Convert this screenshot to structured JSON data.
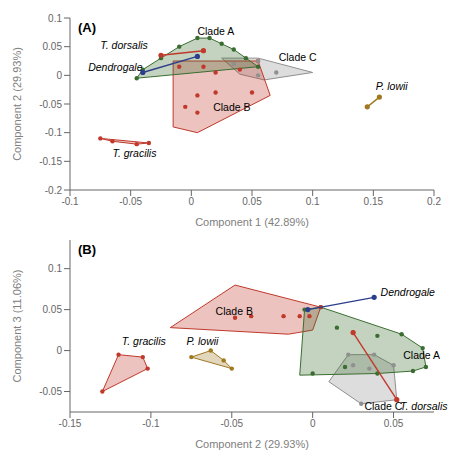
{
  "chart_data": [
    {
      "type": "scatter",
      "title": "(A)",
      "xlabel": "Component 1 (42.89%)",
      "ylabel": "Component 2 (29.93%)",
      "xlim": [
        -0.1,
        0.2
      ],
      "ylim": [
        -0.2,
        0.1
      ],
      "xticks": [
        -0.1,
        -0.05,
        0,
        0.05,
        0.1,
        0.15,
        0.2
      ],
      "yticks": [
        -0.2,
        -0.15,
        -0.1,
        -0.05,
        0,
        0.05,
        0.1
      ],
      "series": [
        {
          "type": "polygon",
          "color": "#909090",
          "x": [
            0.025,
            0.04,
            0.06,
            0.1,
            0.055
          ],
          "y": [
            0.03,
            0.002,
            -0.008,
            0.005,
            0.03
          ]
        },
        {
          "type": "polygon",
          "color": "#c0392b",
          "x": [
            -0.015,
            0.005,
            0.065,
            0.055,
            -0.015
          ],
          "y": [
            -0.09,
            -0.1,
            -0.035,
            0.025,
            0.025
          ]
        },
        {
          "type": "polygon",
          "color": "#c0392b",
          "x": [
            -0.075,
            -0.065,
            -0.045,
            -0.035
          ],
          "y": [
            -0.11,
            -0.115,
            -0.12,
            -0.118
          ]
        },
        {
          "type": "polygon",
          "color": "#3a6e30",
          "x": [
            -0.045,
            0.055,
            0.035,
            0.015,
            0.005,
            -0.01,
            -0.04
          ],
          "y": [
            -0.005,
            0.015,
            0.045,
            0.065,
            0.065,
            0.05,
            0.01
          ]
        },
        {
          "type": "line",
          "color": "#a07820",
          "marker": "circle",
          "x": [
            0.145,
            0.155
          ],
          "y": [
            -0.055,
            -0.038
          ]
        },
        {
          "type": "scatter",
          "color": "#3a6e30",
          "marker": "circle",
          "x": [
            -0.04,
            -0.025,
            -0.01,
            0.005,
            0.015,
            0.025,
            0.035,
            0.045,
            0.055,
            -0.045
          ],
          "y": [
            0.01,
            0.03,
            0.05,
            0.065,
            0.065,
            0.055,
            0.045,
            0.03,
            0.015,
            -0.005
          ]
        },
        {
          "type": "scatter",
          "color": "#c0392b",
          "marker": "circle",
          "x": [
            -0.01,
            0.01,
            0.02,
            0.04,
            0.055,
            0.05,
            0.02,
            0.005,
            0.005,
            -0.005
          ],
          "y": [
            0.015,
            0.015,
            0.005,
            0.01,
            0.025,
            -0.03,
            -0.03,
            -0.035,
            -0.065,
            -0.055
          ]
        },
        {
          "type": "scatter",
          "color": "#909090",
          "marker": "circle",
          "x": [
            0.035,
            0.055,
            0.07,
            0.055
          ],
          "y": [
            0.02,
            0.025,
            0.005,
            0.0
          ]
        },
        {
          "type": "scatter",
          "color": "#c0392b",
          "marker": "circle",
          "x": [
            -0.075,
            -0.065,
            -0.045,
            -0.035
          ],
          "y": [
            -0.11,
            -0.115,
            -0.12,
            -0.118
          ]
        },
        {
          "type": "line",
          "color": "#2c3e8a",
          "marker": "circle",
          "x": [
            -0.04,
            0.005
          ],
          "y": [
            0.005,
            0.033
          ]
        },
        {
          "type": "line",
          "color": "#c0392b",
          "marker": "circle",
          "x": [
            -0.025,
            0.01
          ],
          "y": [
            0.035,
            0.043
          ]
        }
      ],
      "annotations": [
        {
          "text": "Clade A",
          "x": 0.005,
          "y": 0.077,
          "italic": false
        },
        {
          "text": "Clade B",
          "x": 0.018,
          "y": -0.055,
          "italic": false
        },
        {
          "text": "Clade C",
          "x": 0.072,
          "y": 0.032,
          "italic": false
        },
        {
          "text": "T. dorsalis",
          "x": -0.075,
          "y": 0.053,
          "italic": true
        },
        {
          "text": "Dendrogale",
          "x": -0.085,
          "y": 0.015,
          "italic": true
        },
        {
          "text": "T. gracilis",
          "x": -0.065,
          "y": -0.135,
          "italic": true
        },
        {
          "text": "P. lowii",
          "x": 0.152,
          "y": -0.018,
          "italic": true
        }
      ]
    },
    {
      "type": "scatter",
      "title": "(B)",
      "xlabel": "Component 2 (29.93%)",
      "ylabel": "Component 3 (11.06%)",
      "xlim": [
        -0.15,
        0.075
      ],
      "ylim": [
        -0.075,
        0.135
      ],
      "xticks": [
        -0.15,
        -0.1,
        -0.05,
        0,
        0.05
      ],
      "yticks": [
        -0.05,
        0,
        0.05,
        0.1
      ],
      "series": [
        {
          "type": "polygon",
          "color": "#909090",
          "x": [
            0.01,
            0.03,
            0.052,
            0.05,
            0.038,
            0.022
          ],
          "y": [
            -0.038,
            -0.065,
            -0.06,
            -0.018,
            -0.005,
            -0.005
          ]
        },
        {
          "type": "polygon",
          "color": "#c0392b",
          "x": [
            -0.088,
            -0.015,
            0.0,
            0.005,
            -0.048
          ],
          "y": [
            0.028,
            0.02,
            0.025,
            0.053,
            0.08
          ]
        },
        {
          "type": "polygon",
          "color": "#c0392b",
          "x": [
            -0.13,
            -0.102,
            -0.105,
            -0.12
          ],
          "y": [
            -0.05,
            -0.022,
            -0.008,
            -0.005
          ]
        },
        {
          "type": "polygon",
          "color": "#a07820",
          "x": [
            -0.075,
            -0.05,
            -0.055,
            -0.063
          ],
          "y": [
            -0.008,
            -0.022,
            -0.012,
            0.0
          ]
        },
        {
          "type": "polygon",
          "color": "#3a6e30",
          "x": [
            -0.008,
            0.04,
            0.062,
            0.07,
            0.068,
            0.055,
            0.005,
            -0.005
          ],
          "y": [
            -0.03,
            -0.028,
            -0.025,
            -0.02,
            0.003,
            0.02,
            0.053,
            0.05
          ]
        },
        {
          "type": "scatter",
          "color": "#a07820",
          "marker": "circle",
          "x": [
            -0.075,
            -0.063,
            -0.055,
            -0.05
          ],
          "y": [
            -0.008,
            0.0,
            -0.012,
            -0.022
          ]
        },
        {
          "type": "scatter",
          "color": "#3a6e30",
          "marker": "circle",
          "x": [
            -0.005,
            0.005,
            0.015,
            0.025,
            0.04,
            0.055,
            0.068,
            0.07,
            0.062,
            0.04,
            0.02,
            0.0
          ],
          "y": [
            0.05,
            0.053,
            0.028,
            0.022,
            0.018,
            0.02,
            0.003,
            -0.02,
            -0.025,
            -0.028,
            -0.02,
            -0.028
          ]
        },
        {
          "type": "scatter",
          "color": "#c0392b",
          "marker": "circle",
          "x": [
            -0.048,
            -0.038,
            -0.018,
            -0.008,
            -0.002,
            0.005
          ],
          "y": [
            0.04,
            0.042,
            0.042,
            0.042,
            0.042,
            0.053
          ]
        },
        {
          "type": "scatter",
          "color": "#909090",
          "marker": "circle",
          "x": [
            0.022,
            0.038,
            0.025,
            0.035,
            0.05,
            0.052,
            0.03
          ],
          "y": [
            -0.005,
            -0.005,
            -0.018,
            -0.022,
            -0.018,
            -0.06,
            -0.065
          ]
        },
        {
          "type": "scatter",
          "color": "#c0392b",
          "marker": "circle",
          "x": [
            -0.13,
            -0.12,
            -0.105,
            -0.102
          ],
          "y": [
            -0.05,
            -0.005,
            -0.008,
            -0.022
          ]
        },
        {
          "type": "line",
          "color": "#2c3e8a",
          "marker": "circle",
          "x": [
            -0.003,
            0.038
          ],
          "y": [
            0.05,
            0.065
          ]
        },
        {
          "type": "line",
          "color": "#c0392b",
          "marker": "circle",
          "x": [
            0.025,
            0.052
          ],
          "y": [
            0.022,
            -0.06
          ]
        }
      ],
      "annotations": [
        {
          "text": "Clade A",
          "x": 0.056,
          "y": -0.005,
          "italic": false
        },
        {
          "text": "Clade B",
          "x": -0.06,
          "y": 0.048,
          "italic": false
        },
        {
          "text": "Clade C",
          "x": 0.032,
          "y": -0.068,
          "italic": false
        },
        {
          "text": "T. dorsalis",
          "x": 0.054,
          "y": -0.068,
          "italic": true
        },
        {
          "text": "Dendrogale",
          "x": 0.042,
          "y": 0.072,
          "italic": true
        },
        {
          "text": "T. gracilis",
          "x": -0.118,
          "y": 0.012,
          "italic": true
        },
        {
          "text": "P. lowii",
          "x": -0.078,
          "y": 0.012,
          "italic": true
        }
      ]
    }
  ]
}
